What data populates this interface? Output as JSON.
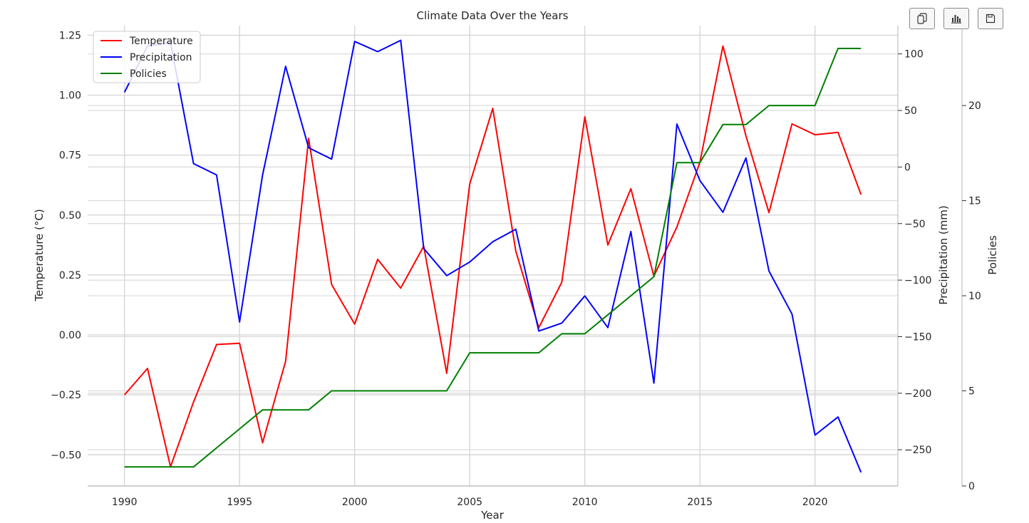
{
  "toolbar": {
    "buttons": [
      {
        "icon": "copy-icon"
      },
      {
        "icon": "bar-chart-icon"
      },
      {
        "icon": "save-icon"
      }
    ]
  },
  "chart_data": {
    "type": "line",
    "title": "Climate Data Over the Years",
    "xlabel": "Year",
    "ylabel": "Temperature (°C)",
    "y2label": "Precipitation (mm)",
    "y3label": "Policies",
    "xlim": [
      1988.4,
      2023.6
    ],
    "ylim": [
      -0.63,
      1.29
    ],
    "y2lim": [
      -282,
      125
    ],
    "y3lim": [
      0,
      24.2
    ],
    "xticks": [
      1990,
      1995,
      2000,
      2005,
      2010,
      2015,
      2020
    ],
    "yticks": [
      -0.5,
      -0.25,
      0,
      0.25,
      0.5,
      0.75,
      1.0,
      1.25
    ],
    "y2ticks": [
      -250,
      -200,
      -150,
      -100,
      -50,
      0,
      50,
      100
    ],
    "y3ticks": [
      0,
      5,
      10,
      15,
      20
    ],
    "grid": true,
    "legend": "top-left",
    "x": [
      1990,
      1991,
      1992,
      1993,
      1994,
      1995,
      1996,
      1997,
      1998,
      1999,
      2000,
      2001,
      2002,
      2003,
      2004,
      2005,
      2006,
      2007,
      2008,
      2009,
      2010,
      2011,
      2012,
      2013,
      2014,
      2015,
      2016,
      2017,
      2018,
      2019,
      2020,
      2021,
      2022
    ],
    "series": [
      {
        "name": "Temperature",
        "axis": "y",
        "color": "#ff0000",
        "values": [
          -0.25,
          -0.14,
          -0.55,
          -0.28,
          -0.04,
          -0.035,
          -0.45,
          -0.11,
          0.82,
          0.21,
          0.045,
          0.315,
          0.195,
          0.37,
          -0.16,
          0.63,
          0.945,
          0.35,
          0.03,
          0.22,
          0.91,
          0.375,
          0.61,
          0.245,
          0.45,
          0.72,
          1.205,
          0.83,
          0.51,
          0.88,
          0.835,
          0.845,
          0.585
        ]
      },
      {
        "name": "Precipitation",
        "axis": "y2",
        "color": "#0000ff",
        "values": [
          66,
          107,
          110,
          3,
          -7,
          -137,
          -7,
          89,
          17,
          7,
          111,
          102,
          112,
          -72,
          -96,
          -84,
          -66,
          -55,
          -145,
          -138,
          -114,
          -142,
          -57,
          -191,
          38,
          -12,
          -40,
          8,
          -92,
          -130,
          -237,
          -221,
          -270
        ]
      },
      {
        "name": "Policies",
        "axis": "y3",
        "color": "#008000",
        "values": [
          1,
          1,
          1,
          1,
          2,
          3,
          4,
          4,
          4,
          5,
          5,
          5,
          5,
          5,
          5,
          7,
          7,
          7,
          7,
          8,
          8,
          9,
          10,
          11,
          17,
          17,
          19,
          19,
          20,
          20,
          20,
          23,
          23
        ]
      }
    ]
  }
}
